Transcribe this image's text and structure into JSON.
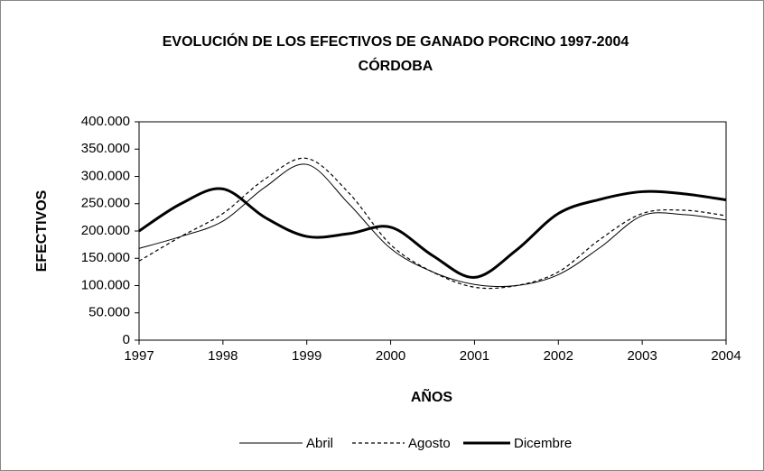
{
  "chart_data": {
    "type": "line",
    "title": "EVOLUCIÓN DE LOS EFECTIVOS DE GANADO PORCINO 1997-2004",
    "subtitle": "CÓRDOBA",
    "x_label": "AÑOS",
    "y_label": "EFECTIVOS",
    "x": [
      1997,
      1997.5,
      1998,
      1998.5,
      1999,
      1999.5,
      2000,
      2000.5,
      2001,
      2001.5,
      2002,
      2002.5,
      2003,
      2003.5,
      2004
    ],
    "series": [
      {
        "name": "Abril",
        "color": "#000000",
        "style": "thin",
        "values": [
          168000,
          190000,
          218000,
          280000,
          322000,
          250000,
          168000,
          125000,
          102000,
          100000,
          120000,
          170000,
          228000,
          230000,
          220000
        ]
      },
      {
        "name": "Agosto",
        "color": "#000000",
        "style": "dashed",
        "values": [
          145000,
          190000,
          232000,
          295000,
          333000,
          270000,
          175000,
          125000,
          97000,
          100000,
          125000,
          185000,
          232000,
          238000,
          228000
        ]
      },
      {
        "name": "Dicembre",
        "color": "#000000",
        "style": "thick",
        "values": [
          200000,
          250000,
          277000,
          225000,
          190000,
          195000,
          207000,
          155000,
          115000,
          165000,
          232000,
          258000,
          272000,
          268000,
          257000
        ]
      }
    ],
    "xlim": [
      1997,
      2004
    ],
    "xticks": [
      1997,
      1998,
      1999,
      2000,
      2001,
      2002,
      2003,
      2004
    ],
    "ylim": [
      0,
      400000
    ],
    "yticks": [
      0,
      {
        "value": 50000,
        "label": "50.000"
      },
      {
        "value": 100000,
        "label": "100.000"
      },
      {
        "value": 150000,
        "label": "150.000"
      },
      {
        "value": 200000,
        "label": "200.000"
      },
      {
        "value": 250000,
        "label": "250.000"
      },
      {
        "value": 300000,
        "label": "300.000"
      },
      {
        "value": 350000,
        "label": "350.000"
      },
      {
        "value": 400000,
        "label": "400.000"
      }
    ],
    "legend": "bottom"
  }
}
